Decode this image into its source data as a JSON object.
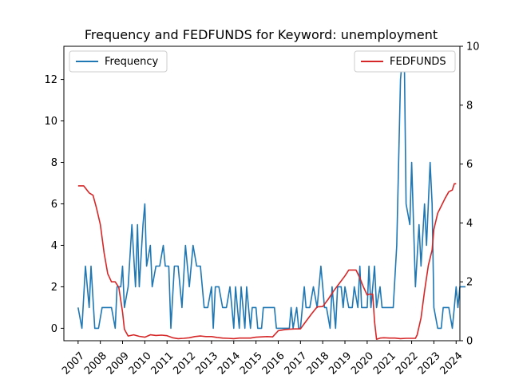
{
  "chart_data": {
    "type": "line",
    "title": "Frequency and FEDFUNDS for Keyword: unemployment",
    "xlabel": "",
    "ylabel_left": "",
    "ylabel_right": "",
    "x_tick_labels": [
      "2007",
      "2008",
      "2009",
      "2010",
      "2011",
      "2012",
      "2013",
      "2014",
      "2015",
      "2016",
      "2017",
      "2018",
      "2019",
      "2020",
      "2021",
      "2022",
      "2023",
      "2024"
    ],
    "x_range": [
      2006.36,
      2024.17
    ],
    "y_left_ticks": [
      0,
      2,
      4,
      6,
      8,
      10,
      12
    ],
    "y_left_range": [
      -0.6,
      13.6
    ],
    "y_right_ticks": [
      0,
      2,
      4,
      6,
      8,
      10
    ],
    "y_right_range": [
      0,
      10
    ],
    "grid": false,
    "legend_left": {
      "placement": "upper-left",
      "label": "Frequency"
    },
    "legend_right": {
      "placement": "upper-right",
      "label": "FEDFUNDS"
    },
    "series": [
      {
        "name": "Frequency",
        "axis": "left",
        "color": "#1f77b4",
        "points": [
          [
            2007.0,
            1
          ],
          [
            2007.17,
            0
          ],
          [
            2007.33,
            3
          ],
          [
            2007.5,
            1
          ],
          [
            2007.58,
            3
          ],
          [
            2007.75,
            0
          ],
          [
            2007.92,
            0
          ],
          [
            2008.08,
            1
          ],
          [
            2008.33,
            1
          ],
          [
            2008.5,
            1
          ],
          [
            2008.67,
            0
          ],
          [
            2008.75,
            2
          ],
          [
            2008.92,
            2
          ],
          [
            2009.0,
            3
          ],
          [
            2009.08,
            1
          ],
          [
            2009.25,
            2
          ],
          [
            2009.42,
            5
          ],
          [
            2009.58,
            2
          ],
          [
            2009.67,
            5
          ],
          [
            2009.75,
            2
          ],
          [
            2009.92,
            5
          ],
          [
            2010.0,
            6
          ],
          [
            2010.08,
            3
          ],
          [
            2010.25,
            4
          ],
          [
            2010.33,
            2
          ],
          [
            2010.5,
            3
          ],
          [
            2010.67,
            3
          ],
          [
            2010.83,
            4
          ],
          [
            2010.92,
            3
          ],
          [
            2011.08,
            3
          ],
          [
            2011.17,
            0
          ],
          [
            2011.33,
            3
          ],
          [
            2011.5,
            3
          ],
          [
            2011.67,
            1
          ],
          [
            2011.83,
            4
          ],
          [
            2012.0,
            2
          ],
          [
            2012.17,
            4
          ],
          [
            2012.33,
            3
          ],
          [
            2012.5,
            3
          ],
          [
            2012.67,
            1
          ],
          [
            2012.83,
            1
          ],
          [
            2013.0,
            2
          ],
          [
            2013.08,
            0
          ],
          [
            2013.17,
            2
          ],
          [
            2013.33,
            2
          ],
          [
            2013.5,
            1
          ],
          [
            2013.67,
            1
          ],
          [
            2013.83,
            2
          ],
          [
            2014.0,
            0
          ],
          [
            2014.08,
            2
          ],
          [
            2014.25,
            0
          ],
          [
            2014.33,
            2
          ],
          [
            2014.5,
            0
          ],
          [
            2014.58,
            2
          ],
          [
            2014.75,
            0
          ],
          [
            2014.83,
            1
          ],
          [
            2015.0,
            1
          ],
          [
            2015.08,
            0
          ],
          [
            2015.25,
            0
          ],
          [
            2015.33,
            1
          ],
          [
            2015.5,
            1
          ],
          [
            2015.67,
            1
          ],
          [
            2015.83,
            1
          ],
          [
            2015.92,
            0
          ],
          [
            2016.0,
            0
          ],
          [
            2016.17,
            0
          ],
          [
            2016.33,
            0
          ],
          [
            2016.5,
            0
          ],
          [
            2016.58,
            1
          ],
          [
            2016.67,
            0
          ],
          [
            2016.83,
            1
          ],
          [
            2016.92,
            0
          ],
          [
            2017.0,
            0
          ],
          [
            2017.17,
            2
          ],
          [
            2017.25,
            1
          ],
          [
            2017.42,
            1
          ],
          [
            2017.58,
            2
          ],
          [
            2017.75,
            1
          ],
          [
            2017.92,
            3
          ],
          [
            2018.0,
            2
          ],
          [
            2018.08,
            1
          ],
          [
            2018.17,
            1
          ],
          [
            2018.33,
            0
          ],
          [
            2018.42,
            2
          ],
          [
            2018.58,
            0
          ],
          [
            2018.67,
            2
          ],
          [
            2018.83,
            2
          ],
          [
            2018.92,
            1
          ],
          [
            2019.0,
            2
          ],
          [
            2019.17,
            1
          ],
          [
            2019.33,
            1
          ],
          [
            2019.42,
            2
          ],
          [
            2019.58,
            1
          ],
          [
            2019.67,
            3
          ],
          [
            2019.75,
            1
          ],
          [
            2019.92,
            1
          ],
          [
            2020.0,
            1
          ],
          [
            2020.08,
            3
          ],
          [
            2020.17,
            1
          ],
          [
            2020.33,
            3
          ],
          [
            2020.42,
            1
          ],
          [
            2020.58,
            2
          ],
          [
            2020.67,
            1
          ],
          [
            2020.75,
            1
          ],
          [
            2020.92,
            1
          ],
          [
            2021.0,
            1
          ],
          [
            2021.17,
            1
          ],
          [
            2021.33,
            4
          ],
          [
            2021.5,
            12
          ],
          [
            2021.58,
            13
          ],
          [
            2021.67,
            13
          ],
          [
            2021.75,
            6
          ],
          [
            2021.92,
            5
          ],
          [
            2022.0,
            8
          ],
          [
            2022.17,
            2
          ],
          [
            2022.33,
            5
          ],
          [
            2022.42,
            3
          ],
          [
            2022.58,
            6
          ],
          [
            2022.67,
            4
          ],
          [
            2022.83,
            8
          ],
          [
            2022.92,
            6
          ],
          [
            2023.0,
            1
          ],
          [
            2023.17,
            0
          ],
          [
            2023.33,
            0
          ],
          [
            2023.42,
            1
          ],
          [
            2023.58,
            1
          ],
          [
            2023.67,
            1
          ],
          [
            2023.83,
            0
          ],
          [
            2023.92,
            1
          ],
          [
            2024.0,
            2
          ],
          [
            2024.08,
            1
          ],
          [
            2024.17,
            2
          ],
          [
            2024.33,
            2
          ],
          [
            2024.42,
            2
          ]
        ]
      },
      {
        "name": "FEDFUNDS",
        "axis": "right",
        "color": "#d62728",
        "points": [
          [
            2007.0,
            5.26
          ],
          [
            2007.25,
            5.26
          ],
          [
            2007.5,
            5.02
          ],
          [
            2007.67,
            4.94
          ],
          [
            2007.83,
            4.5
          ],
          [
            2008.0,
            3.94
          ],
          [
            2008.17,
            2.98
          ],
          [
            2008.33,
            2.28
          ],
          [
            2008.5,
            2.0
          ],
          [
            2008.67,
            2.0
          ],
          [
            2008.83,
            1.81
          ],
          [
            2009.0,
            0.97
          ],
          [
            2009.08,
            0.39
          ],
          [
            2009.25,
            0.16
          ],
          [
            2009.5,
            0.2
          ],
          [
            2009.75,
            0.15
          ],
          [
            2010.0,
            0.12
          ],
          [
            2010.25,
            0.2
          ],
          [
            2010.5,
            0.18
          ],
          [
            2010.75,
            0.19
          ],
          [
            2011.0,
            0.17
          ],
          [
            2011.25,
            0.1
          ],
          [
            2011.5,
            0.07
          ],
          [
            2011.75,
            0.08
          ],
          [
            2012.0,
            0.1
          ],
          [
            2012.25,
            0.14
          ],
          [
            2012.5,
            0.16
          ],
          [
            2012.75,
            0.14
          ],
          [
            2013.0,
            0.14
          ],
          [
            2013.25,
            0.11
          ],
          [
            2013.5,
            0.09
          ],
          [
            2013.75,
            0.08
          ],
          [
            2014.0,
            0.07
          ],
          [
            2014.25,
            0.09
          ],
          [
            2014.5,
            0.09
          ],
          [
            2014.75,
            0.09
          ],
          [
            2015.0,
            0.12
          ],
          [
            2015.25,
            0.13
          ],
          [
            2015.5,
            0.14
          ],
          [
            2015.75,
            0.13
          ],
          [
            2016.0,
            0.34
          ],
          [
            2016.25,
            0.37
          ],
          [
            2016.5,
            0.39
          ],
          [
            2016.75,
            0.4
          ],
          [
            2017.0,
            0.4
          ],
          [
            2017.25,
            0.66
          ],
          [
            2017.5,
            0.91
          ],
          [
            2017.75,
            1.15
          ],
          [
            2018.0,
            1.16
          ],
          [
            2018.25,
            1.41
          ],
          [
            2018.5,
            1.7
          ],
          [
            2018.75,
            1.95
          ],
          [
            2019.0,
            2.2
          ],
          [
            2019.17,
            2.4
          ],
          [
            2019.33,
            2.4
          ],
          [
            2019.5,
            2.4
          ],
          [
            2019.67,
            2.13
          ],
          [
            2019.83,
            1.83
          ],
          [
            2020.0,
            1.55
          ],
          [
            2020.08,
            1.58
          ],
          [
            2020.25,
            1.58
          ],
          [
            2020.33,
            0.65
          ],
          [
            2020.42,
            0.05
          ],
          [
            2020.58,
            0.09
          ],
          [
            2020.75,
            0.1
          ],
          [
            2021.0,
            0.09
          ],
          [
            2021.25,
            0.09
          ],
          [
            2021.5,
            0.07
          ],
          [
            2021.75,
            0.08
          ],
          [
            2022.0,
            0.08
          ],
          [
            2022.17,
            0.08
          ],
          [
            2022.25,
            0.2
          ],
          [
            2022.42,
            0.77
          ],
          [
            2022.58,
            1.68
          ],
          [
            2022.75,
            2.56
          ],
          [
            2022.92,
            3.08
          ],
          [
            2023.0,
            3.78
          ],
          [
            2023.17,
            4.33
          ],
          [
            2023.33,
            4.57
          ],
          [
            2023.5,
            4.83
          ],
          [
            2023.67,
            5.06
          ],
          [
            2023.83,
            5.12
          ],
          [
            2023.92,
            5.33
          ],
          [
            2024.0,
            5.33
          ]
        ]
      }
    ]
  }
}
